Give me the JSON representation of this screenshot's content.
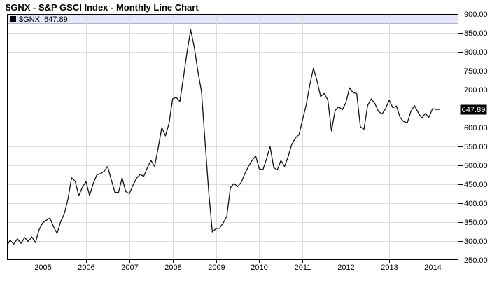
{
  "page": {
    "title": "$GNX - S&P GSCI Index - Monthly Line Chart"
  },
  "legend": {
    "label": "$GNX: 647.89",
    "swatch_color": "#000000",
    "background_color": "#e6e6fa"
  },
  "y_axis": {
    "tick_labels": [
      "900.00",
      "850.00",
      "800.00",
      "750.00",
      "700.00",
      "600.00",
      "550.00",
      "500.00",
      "450.00",
      "400.00",
      "350.00",
      "300.00",
      "250.00"
    ],
    "current_value_tag": {
      "text": "647.89",
      "value": 647.89,
      "background": "#000000",
      "text_color": "#ffffff"
    }
  },
  "x_axis": {
    "tick_labels": [
      "2005",
      "2006",
      "2007",
      "2008",
      "2009",
      "2010",
      "2011",
      "2012",
      "2013",
      "2014"
    ]
  },
  "colors": {
    "line": "#141414",
    "grid": "#dcdcdc",
    "axis": "#000000",
    "background": "#ffffff",
    "legend_bg": "#e6e6fa",
    "legend_border": "#b4b4c8"
  },
  "chart_data": {
    "type": "line",
    "title": "$GNX - S&P GSCI Index - Monthly Line Chart",
    "xlabel": "",
    "ylabel": "",
    "ylim": [
      250,
      900
    ],
    "y_tick_step": 50,
    "grid": true,
    "legend_position": "inside-top-left",
    "x_tick_labels": [
      "2005",
      "2006",
      "2007",
      "2008",
      "2009",
      "2010",
      "2011",
      "2012",
      "2013",
      "2014"
    ],
    "series": [
      {
        "name": "$GNX",
        "interval": "monthly",
        "start": "2004-03",
        "end": "2014-03",
        "last_value": 647.89,
        "values": [
          290,
          302,
          292,
          306,
          294,
          309,
          299,
          311,
          296,
          330,
          348,
          355,
          361,
          338,
          320,
          352,
          372,
          411,
          467,
          458,
          420,
          442,
          457,
          420,
          452,
          475,
          478,
          484,
          497,
          462,
          429,
          428,
          467,
          431,
          425,
          447,
          466,
          476,
          471,
          494,
          513,
          497,
          546,
          600,
          578,
          611,
          676,
          680,
          669,
          732,
          800,
          858,
          812,
          748,
          695,
          560,
          430,
          324,
          333,
          334,
          348,
          365,
          441,
          452,
          444,
          455,
          478,
          497,
          513,
          525,
          491,
          488,
          517,
          550,
          494,
          488,
          513,
          497,
          523,
          556,
          572,
          581,
          621,
          660,
          712,
          757,
          723,
          682,
          690,
          673,
          591,
          645,
          655,
          647,
          666,
          705,
          692,
          690,
          602,
          595,
          658,
          676,
          664,
          643,
          636,
          650,
          673,
          652,
          657,
          627,
          616,
          612,
          643,
          658,
          640,
          625,
          637,
          627,
          650,
          648,
          647.89
        ]
      }
    ]
  }
}
